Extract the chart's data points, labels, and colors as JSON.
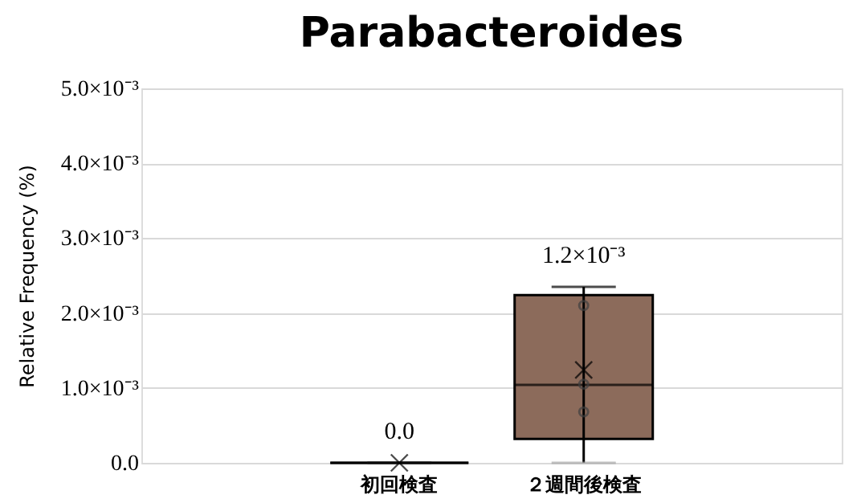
{
  "chart_data": {
    "type": "box",
    "title": "Parabacteroides",
    "ylabel": "Relative Frequency (%)",
    "categories": [
      "初回検査",
      "２週間後検査"
    ],
    "colors": [
      "#a6a6a6",
      "#8c6b5b"
    ],
    "boxes": [
      {
        "low": 0,
        "q1": 0,
        "median": 0,
        "q3": 0,
        "high": 0,
        "mean": 0
      },
      {
        "low": 0,
        "q1": 0.00032,
        "median": 0.00104,
        "q3": 0.00224,
        "high": 0.00235,
        "mean": 0.00124
      }
    ],
    "series": [
      {
        "type": "scatter",
        "x": [
          "２週間後検査",
          "２週間後検査",
          "２週間後検査"
        ],
        "values": [
          0.0021,
          0.00105,
          0.00068
        ],
        "color": "#404040"
      }
    ],
    "marker": "circle",
    "value_labels": [
      "0.0",
      "1.2×10⁻³"
    ],
    "ylim": [
      0,
      0.005
    ],
    "yticks": [
      {
        "value": 0,
        "label": "0.0"
      },
      {
        "value": 0.001,
        "label": "1.0×10⁻³"
      },
      {
        "value": 0.002,
        "label": "2.0×10⁻³"
      },
      {
        "value": 0.003,
        "label": "3.0×10⁻³"
      },
      {
        "value": 0.004,
        "label": "4.0×10⁻³"
      },
      {
        "value": 0.005,
        "label": "5.0×10⁻³"
      }
    ],
    "grid": "y",
    "legend": false
  }
}
